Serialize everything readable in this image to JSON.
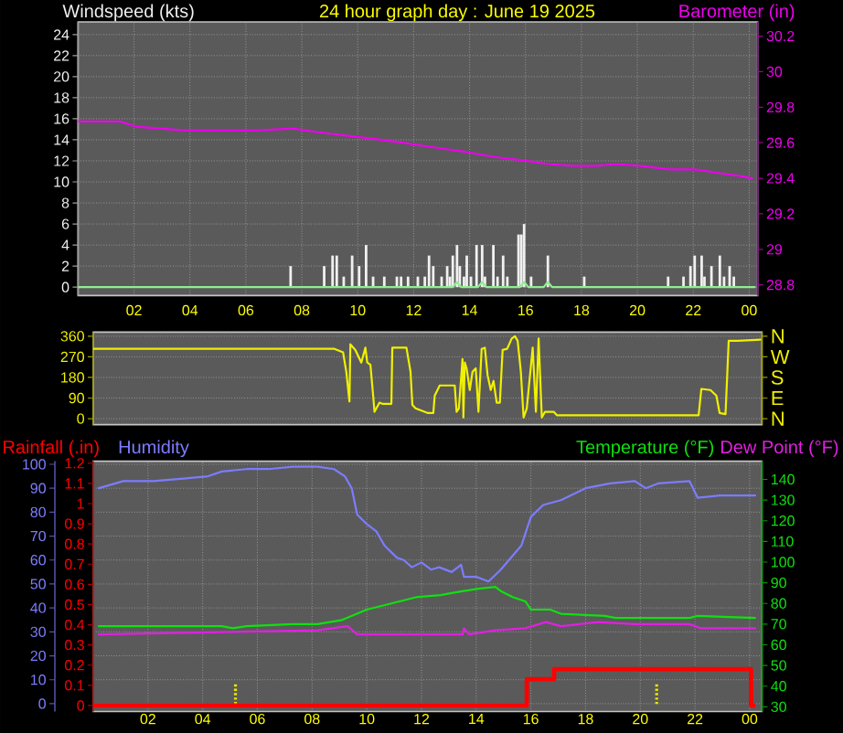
{
  "chart_data": [
    {
      "type": "bar",
      "title": "24 hour graph day : June 19 2025",
      "xlim": [
        "2025-06-19T00:00",
        "2025-06-20T00:18"
      ],
      "xticks": [
        {
          "value": "2025-06-19T02:00",
          "label": "02"
        },
        {
          "value": "2025-06-19T04:00",
          "label": "04"
        },
        {
          "value": "2025-06-19T06:00",
          "label": "06"
        },
        {
          "value": "2025-06-19T08:00",
          "label": "08"
        },
        {
          "value": "2025-06-19T10:00",
          "label": "10"
        },
        {
          "value": "2025-06-19T12:00",
          "label": "12"
        },
        {
          "value": "2025-06-19T14:00",
          "label": "14"
        },
        {
          "value": "2025-06-19T16:00",
          "label": "16"
        },
        {
          "value": "2025-06-19T18:00",
          "label": "18"
        },
        {
          "value": "2025-06-19T20:00",
          "label": "20"
        },
        {
          "value": "2025-06-19T22:00",
          "label": "22"
        },
        {
          "value": "2025-06-20T00:00",
          "label": "00"
        }
      ],
      "ylim": [
        -0.8,
        25.2
      ],
      "yticks": [
        0,
        2,
        4,
        6,
        8,
        10,
        12,
        14,
        16,
        18,
        20,
        22,
        24
      ],
      "y2lim": [
        28.74,
        30.28
      ],
      "y2ticks": [
        28.8,
        29,
        29.2,
        29.4,
        29.6,
        29.8,
        30,
        30.2
      ],
      "grid": true,
      "series": [
        {
          "name": "Windspeed (kts)",
          "color": "#f0f0f0",
          "x": [
            "2025-06-19T07:36",
            "2025-06-19T08:48",
            "2025-06-19T09:06",
            "2025-06-19T09:15",
            "2025-06-19T09:30",
            "2025-06-19T09:48",
            "2025-06-19T10:03",
            "2025-06-19T10:18",
            "2025-06-19T10:33",
            "2025-06-19T10:57",
            "2025-06-19T11:24",
            "2025-06-19T11:33",
            "2025-06-19T11:48",
            "2025-06-19T12:09",
            "2025-06-19T12:24",
            "2025-06-19T12:33",
            "2025-06-19T12:42",
            "2025-06-19T13:00",
            "2025-06-19T13:12",
            "2025-06-19T13:18",
            "2025-06-19T13:24",
            "2025-06-19T13:33",
            "2025-06-19T13:39",
            "2025-06-19T13:48",
            "2025-06-19T13:54",
            "2025-06-19T14:03",
            "2025-06-19T14:15",
            "2025-06-19T14:27",
            "2025-06-19T14:33",
            "2025-06-19T14:51",
            "2025-06-19T15:00",
            "2025-06-19T15:12",
            "2025-06-19T15:21",
            "2025-06-19T15:45",
            "2025-06-19T15:51",
            "2025-06-19T15:57",
            "2025-06-19T16:12",
            "2025-06-19T16:48",
            "2025-06-19T18:06",
            "2025-06-19T21:06",
            "2025-06-19T21:39",
            "2025-06-19T21:54",
            "2025-06-19T22:03",
            "2025-06-19T22:18",
            "2025-06-19T22:24",
            "2025-06-19T22:39",
            "2025-06-19T22:57",
            "2025-06-19T23:06",
            "2025-06-19T23:18",
            "2025-06-19T23:27"
          ],
          "values": [
            2,
            2,
            3,
            3,
            1,
            3,
            2,
            4,
            1,
            1,
            1,
            1,
            1,
            1,
            1,
            3,
            2,
            1,
            2,
            1,
            3,
            4,
            2,
            1,
            3,
            1,
            4,
            4,
            1,
            4,
            1,
            3,
            1,
            5,
            5,
            6,
            1,
            3,
            1,
            1,
            1,
            2,
            3,
            3,
            1,
            2,
            3,
            1,
            2,
            1
          ]
        },
        {
          "type": "line",
          "color": "#90ee90",
          "x": [
            "2025-06-19T00:00",
            "2025-06-19T13:24",
            "2025-06-19T13:33",
            "2025-06-19T13:42",
            "2025-06-19T14:18",
            "2025-06-19T14:27",
            "2025-06-19T14:36",
            "2025-06-19T15:48",
            "2025-06-19T15:57",
            "2025-06-19T16:06",
            "2025-06-19T16:39",
            "2025-06-19T16:48",
            "2025-06-19T16:57",
            "2025-06-20T00:12"
          ],
          "values": [
            0,
            0,
            0.5,
            0,
            0,
            0.5,
            0,
            0,
            0.5,
            0,
            0,
            0.5,
            0,
            0
          ]
        },
        {
          "name": "Barometer (in)",
          "type": "line",
          "axis": "y2",
          "color": "#ee00ee",
          "x": [
            "2025-06-19T00:00",
            "2025-06-19T01:30",
            "2025-06-19T02:06",
            "2025-06-19T03:48",
            "2025-06-19T06:24",
            "2025-06-19T07:42",
            "2025-06-19T08:33",
            "2025-06-19T09:36",
            "2025-06-19T10:42",
            "2025-06-19T11:36",
            "2025-06-19T12:54",
            "2025-06-19T13:48",
            "2025-06-19T14:54",
            "2025-06-19T15:57",
            "2025-06-19T16:48",
            "2025-06-19T17:42",
            "2025-06-19T18:33",
            "2025-06-19T19:12",
            "2025-06-19T20:06",
            "2025-06-19T21:12",
            "2025-06-19T22:03",
            "2025-06-19T22:54",
            "2025-06-19T23:48",
            "2025-06-20T00:06"
          ],
          "values": [
            29.72,
            29.72,
            29.69,
            29.67,
            29.67,
            29.68,
            29.66,
            29.64,
            29.62,
            29.6,
            29.57,
            29.55,
            29.52,
            29.5,
            29.48,
            29.47,
            29.47,
            29.48,
            29.47,
            29.45,
            29.45,
            29.43,
            29.41,
            29.4
          ]
        }
      ]
    },
    {
      "type": "line",
      "xlim": [
        "2025-06-19T00:00",
        "2025-06-20T00:27"
      ],
      "ylim": [
        -26,
        378
      ],
      "yticks": [
        0,
        90,
        180,
        270,
        360
      ],
      "y2_categories": [
        "N",
        "W",
        "S",
        "E",
        "N"
      ],
      "tick_labels": "y",
      "grid": "y",
      "series": [
        {
          "color": "#f0f000",
          "x": [
            "2025-06-19T00:00",
            "2025-06-19T08:49",
            "2025-06-19T09:08",
            "2025-06-19T09:15",
            "2025-06-19T09:22",
            "2025-06-19T09:24",
            "2025-06-19T09:35",
            "2025-06-19T09:48",
            "2025-06-19T09:57",
            "2025-06-19T10:01",
            "2025-06-19T10:08",
            "2025-06-19T10:14",
            "2025-06-19T10:17",
            "2025-06-19T10:28",
            "2025-06-19T10:34",
            "2025-06-19T10:54",
            "2025-06-19T10:56",
            "2025-06-19T11:27",
            "2025-06-19T11:36",
            "2025-06-19T11:40",
            "2025-06-19T11:47",
            "2025-06-19T12:13",
            "2025-06-19T12:26",
            "2025-06-19T12:29",
            "2025-06-19T12:40",
            "2025-06-19T13:13",
            "2025-06-19T13:17",
            "2025-06-19T13:22",
            "2025-06-19T13:30",
            "2025-06-19T13:32",
            "2025-06-19T13:35",
            "2025-06-19T13:39",
            "2025-06-19T13:46",
            "2025-06-19T13:52",
            "2025-06-19T13:59",
            "2025-06-19T14:05",
            "2025-06-19T14:12",
            "2025-06-19T14:19",
            "2025-06-19T14:25",
            "2025-06-19T14:32",
            "2025-06-19T14:38",
            "2025-06-19T14:45",
            "2025-06-19T14:52",
            "2025-06-19T14:58",
            "2025-06-19T15:08",
            "2025-06-19T15:18",
            "2025-06-19T15:25",
            "2025-06-19T15:31",
            "2025-06-19T15:38",
            "2025-06-19T15:44",
            "2025-06-19T15:51",
            "2025-06-19T16:04",
            "2025-06-19T16:11",
            "2025-06-19T16:17",
            "2025-06-19T16:24",
            "2025-06-19T16:31",
            "2025-06-19T16:50",
            "2025-06-19T16:57",
            "2025-06-19T22:08",
            "2025-06-19T22:14",
            "2025-06-19T22:34",
            "2025-06-19T22:47",
            "2025-06-19T22:54",
            "2025-06-19T23:07",
            "2025-06-19T23:14",
            "2025-06-19T23:34",
            "2025-06-20T00:24"
          ],
          "values": [
            305,
            305,
            290,
            205,
            75,
            325,
            300,
            245,
            310,
            245,
            235,
            100,
            30,
            70,
            65,
            65,
            310,
            310,
            205,
            60,
            45,
            25,
            25,
            100,
            145,
            145,
            30,
            45,
            260,
            5,
            245,
            220,
            125,
            205,
            220,
            30,
            305,
            310,
            190,
            125,
            165,
            70,
            70,
            300,
            305,
            350,
            360,
            340,
            205,
            5,
            45,
            310,
            30,
            350,
            5,
            30,
            30,
            15,
            15,
            130,
            125,
            100,
            25,
            20,
            340,
            340,
            345
          ]
        }
      ]
    },
    {
      "type": "line",
      "xlim": [
        "2025-06-19T00:00",
        "2025-06-20T00:27"
      ],
      "xticks": [
        {
          "value": "2025-06-19T02:00",
          "label": "02"
        },
        {
          "value": "2025-06-19T04:00",
          "label": "04"
        },
        {
          "value": "2025-06-19T06:00",
          "label": "06"
        },
        {
          "value": "2025-06-19T08:00",
          "label": "08"
        },
        {
          "value": "2025-06-19T10:00",
          "label": "10"
        },
        {
          "value": "2025-06-19T12:00",
          "label": "12"
        },
        {
          "value": "2025-06-19T14:00",
          "label": "14"
        },
        {
          "value": "2025-06-19T16:00",
          "label": "16"
        },
        {
          "value": "2025-06-19T18:00",
          "label": "18"
        },
        {
          "value": "2025-06-19T20:00",
          "label": "20"
        },
        {
          "value": "2025-06-19T22:00",
          "label": "22"
        },
        {
          "value": "2025-06-20T00:00",
          "label": "00"
        }
      ],
      "ylim": [
        -3.3,
        101.3
      ],
      "yticks": [
        0,
        10,
        20,
        30,
        40,
        50,
        60,
        70,
        80,
        90,
        100
      ],
      "y2lim": [
        27.7,
        148.8
      ],
      "y2ticks": [
        30,
        40,
        50,
        60,
        70,
        80,
        90,
        100,
        110,
        120,
        130,
        140
      ],
      "y3lim": [
        -0.03,
        1.21
      ],
      "y3ticks": [
        0,
        0.1,
        0.2,
        0.3,
        0.4,
        0.5,
        0.6,
        0.7,
        0.8,
        0.9,
        1,
        1.1,
        1.2
      ],
      "grid": true,
      "ref_lines": [
        {
          "axis": "x",
          "value": "2025-06-19T05:12",
          "color": "#e8e800",
          "line_style": "dotted"
        },
        {
          "axis": "x",
          "value": "2025-06-19T20:36",
          "color": "#e8e800",
          "line_style": "dotted"
        }
      ],
      "series": [
        {
          "name": "Rainfall (.in)",
          "type": "step",
          "axis": "y3",
          "color": "#ff0000",
          "x": [
            "2025-06-19T00:00",
            "2025-06-19T15:51",
            "2025-06-19T16:51",
            "2025-06-20T00:03",
            "2025-06-20T00:12"
          ],
          "values": [
            0,
            0.13,
            0.18,
            0,
            0
          ]
        },
        {
          "name": "Humidity",
          "color": "#7c7cff",
          "x": [
            "2025-06-19T00:12",
            "2025-06-19T01:06",
            "2025-06-19T02:12",
            "2025-06-19T03:18",
            "2025-06-19T04:12",
            "2025-06-19T04:42",
            "2025-06-19T05:36",
            "2025-06-19T06:24",
            "2025-06-19T07:18",
            "2025-06-19T08:12",
            "2025-06-19T08:48",
            "2025-06-19T09:12",
            "2025-06-19T09:27",
            "2025-06-19T09:39",
            "2025-06-19T10:00",
            "2025-06-19T10:21",
            "2025-06-19T10:39",
            "2025-06-19T11:06",
            "2025-06-19T11:21",
            "2025-06-19T11:39",
            "2025-06-19T12:00",
            "2025-06-19T12:21",
            "2025-06-19T12:39",
            "2025-06-19T13:06",
            "2025-06-19T13:27",
            "2025-06-19T13:33",
            "2025-06-19T14:00",
            "2025-06-19T14:27",
            "2025-06-19T14:54",
            "2025-06-19T15:21",
            "2025-06-19T15:39",
            "2025-06-19T16:00",
            "2025-06-19T16:27",
            "2025-06-19T17:06",
            "2025-06-19T18:00",
            "2025-06-19T18:54",
            "2025-06-19T19:48",
            "2025-06-19T20:12",
            "2025-06-19T20:39",
            "2025-06-19T21:48",
            "2025-06-19T22:06",
            "2025-06-19T22:54",
            "2025-06-20T00:12"
          ],
          "values": [
            90,
            93,
            93,
            94,
            95,
            97,
            98,
            98,
            99,
            99,
            98,
            95,
            90,
            79,
            75,
            72,
            66,
            61,
            60,
            57,
            59,
            56,
            57,
            55,
            58,
            53,
            53,
            51,
            56,
            62,
            66,
            78,
            83,
            85,
            90,
            92,
            93,
            90,
            92,
            93,
            86,
            87,
            87
          ]
        },
        {
          "name": "Temperature (°F)",
          "axis": "y2",
          "color": "#10e010",
          "x": [
            "2025-06-19T00:12",
            "2025-06-19T04:42",
            "2025-06-19T05:06",
            "2025-06-19T05:36",
            "2025-06-19T07:18",
            "2025-06-19T08:12",
            "2025-06-19T09:06",
            "2025-06-19T10:00",
            "2025-06-19T10:54",
            "2025-06-19T11:48",
            "2025-06-19T12:42",
            "2025-06-19T13:06",
            "2025-06-19T14:00",
            "2025-06-19T14:42",
            "2025-06-19T14:54",
            "2025-06-19T15:21",
            "2025-06-19T15:48",
            "2025-06-19T16:00",
            "2025-06-19T16:42",
            "2025-06-19T17:06",
            "2025-06-19T18:42",
            "2025-06-19T19:06",
            "2025-06-19T21:48",
            "2025-06-19T22:06",
            "2025-06-20T00:12"
          ],
          "values": [
            69,
            69,
            68,
            69,
            70,
            70,
            72,
            77,
            80,
            83,
            84,
            85,
            87,
            88,
            86,
            83,
            81,
            77,
            77,
            75,
            74,
            73,
            73,
            74,
            73
          ]
        },
        {
          "name": "Dew Point (°F)",
          "axis": "y2",
          "color": "#e020e0",
          "x": [
            "2025-06-19T00:12",
            "2025-06-19T08:12",
            "2025-06-19T09:18",
            "2025-06-19T09:39",
            "2025-06-19T12:42",
            "2025-06-19T13:30",
            "2025-06-19T13:33",
            "2025-06-19T13:45",
            "2025-06-19T14:42",
            "2025-06-19T15:48",
            "2025-06-19T16:33",
            "2025-06-19T17:06",
            "2025-06-19T18:27",
            "2025-06-19T19:48",
            "2025-06-19T21:48",
            "2025-06-19T22:12",
            "2025-06-20T00:12"
          ],
          "values": [
            65,
            67,
            69,
            65,
            65,
            65,
            68,
            65,
            67,
            68,
            71,
            69,
            71,
            70,
            70,
            68,
            68
          ]
        }
      ]
    }
  ]
}
